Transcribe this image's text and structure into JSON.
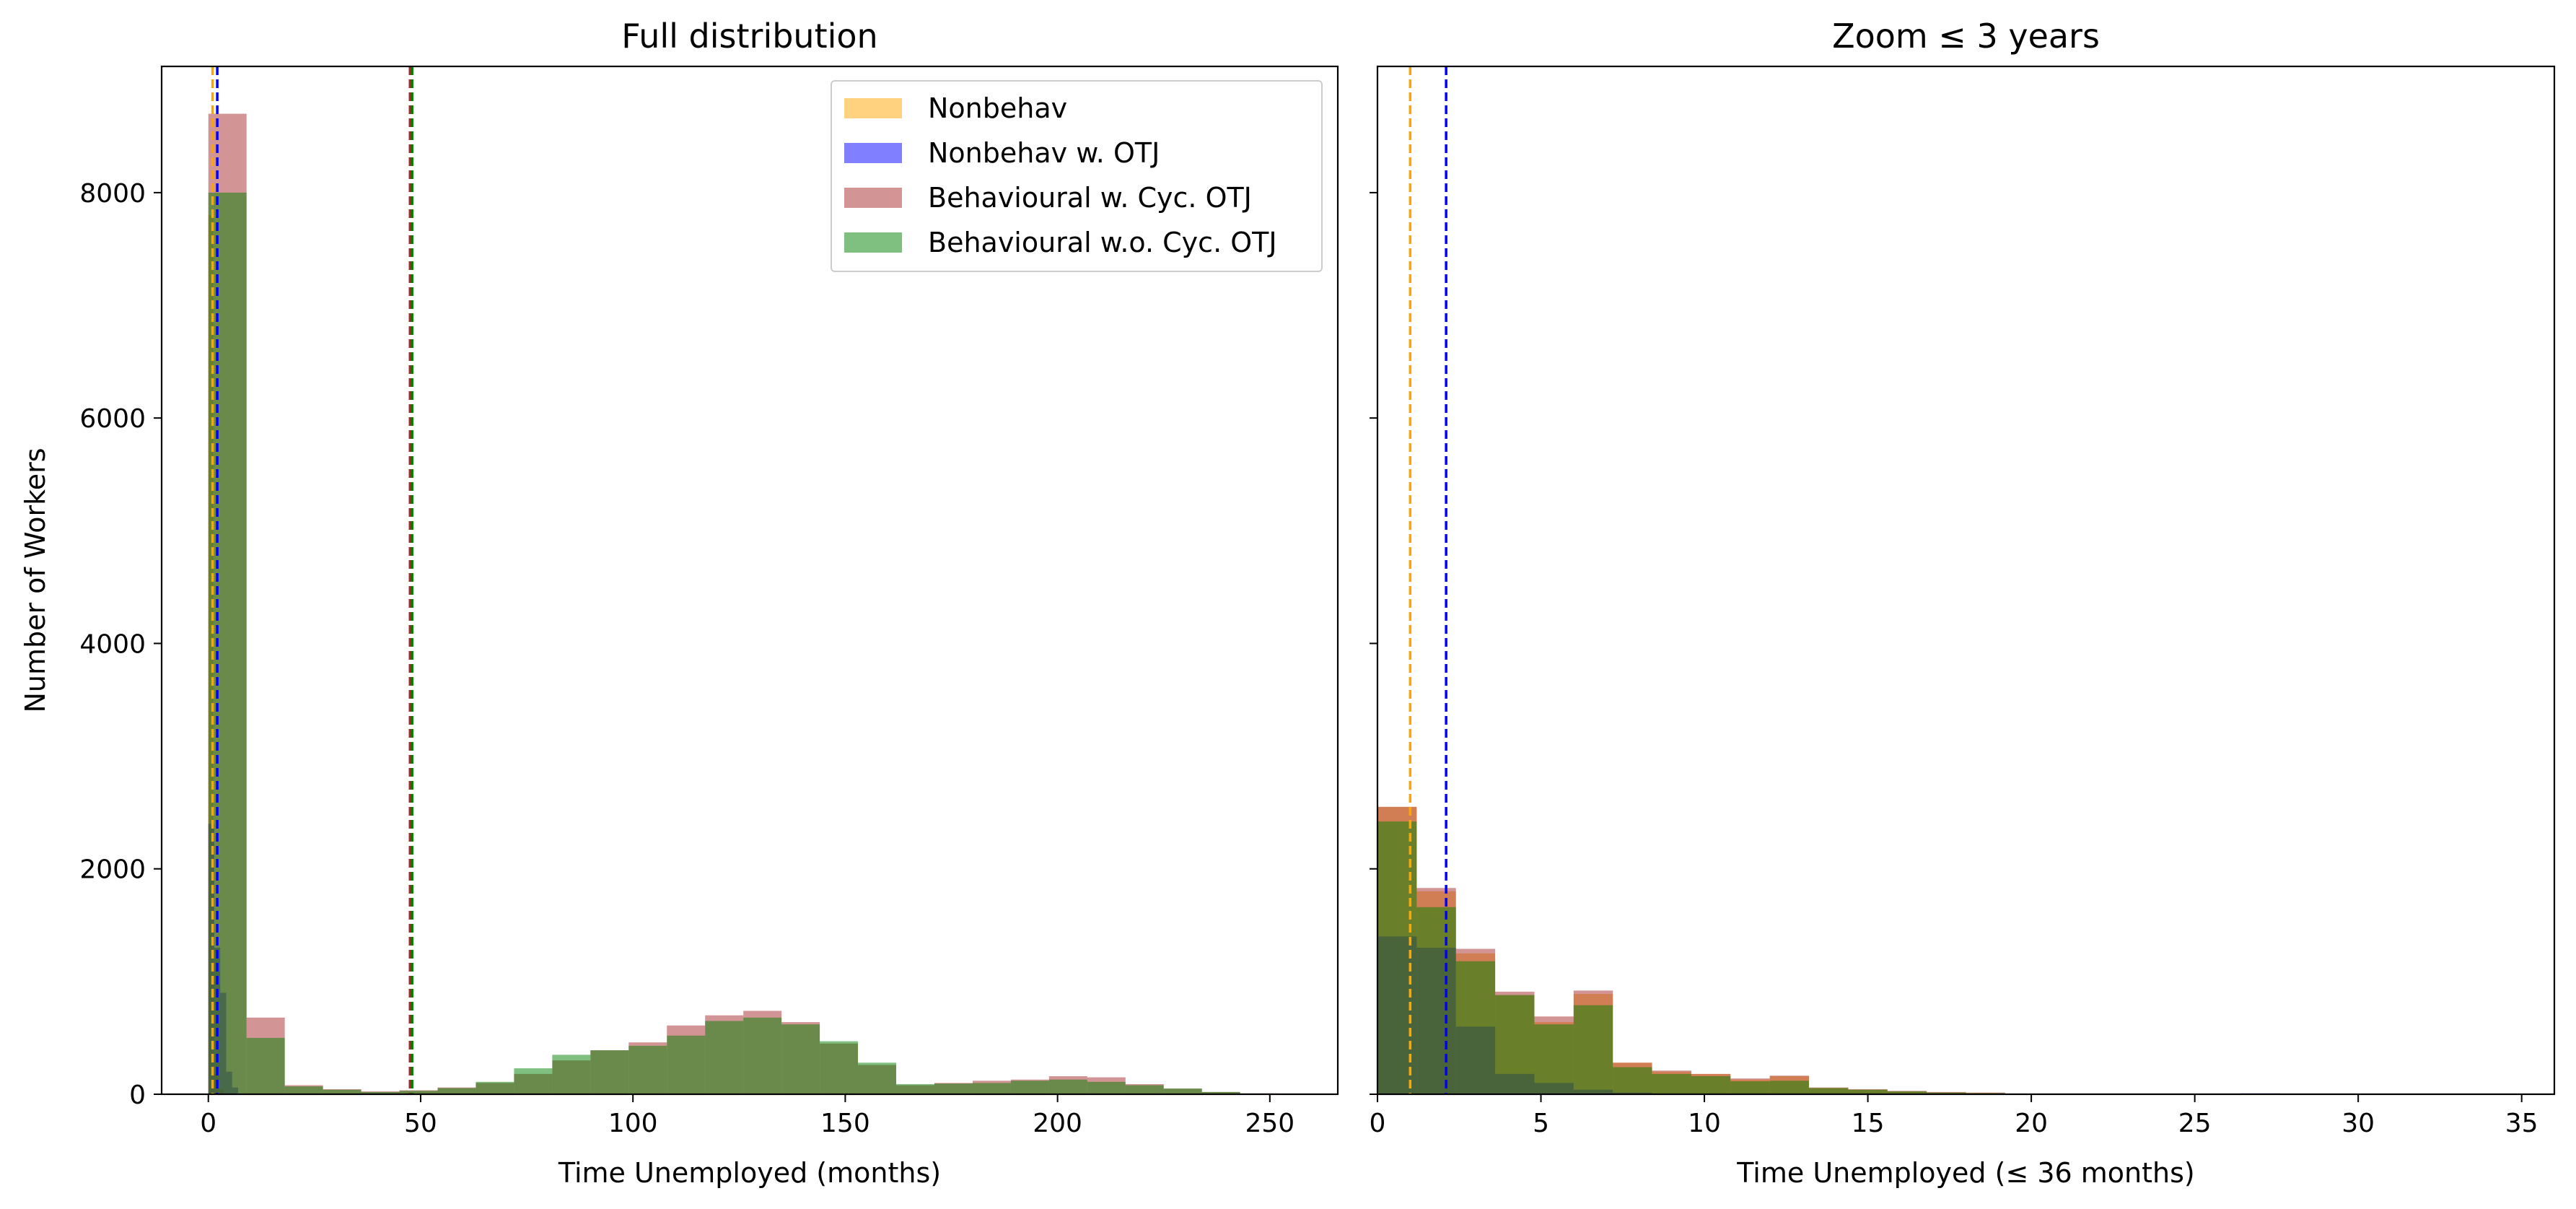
{
  "chart_data": [
    {
      "type": "histogram",
      "title": "Full distribution",
      "xlabel": "Time Unemployed (months)",
      "ylabel": "Number of Workers",
      "xlim": [
        -11,
        266
      ],
      "ylim": [
        0,
        9120
      ],
      "xticks": [
        0,
        50,
        100,
        150,
        200,
        250
      ],
      "yticks": [
        0,
        2000,
        4000,
        6000,
        8000
      ],
      "grid": false,
      "legend_position": "top-right",
      "legend": [
        "Nonbehav",
        "Nonbehav w. OTJ",
        "Behavioural w. Cyc. OTJ",
        "Behavioural w.o. Cyc. OTJ"
      ],
      "bin_width": 9,
      "bin_start": 0,
      "series": [
        {
          "name": "Nonbehav",
          "color": "#ffa500",
          "opacity": 0.5,
          "bins": [
            {
              "x0": 0,
              "x1": 1.2,
              "value": 7800
            },
            {
              "x0": 1.2,
              "x1": 2.4,
              "value": 180
            },
            {
              "x0": 2.4,
              "x1": 3.6,
              "value": 40
            }
          ]
        },
        {
          "name": "Nonbehav w. OTJ",
          "color": "#0000ff",
          "opacity": 0.5,
          "bins": [
            {
              "x0": 0,
              "x1": 1.4,
              "value": 2400
            },
            {
              "x0": 1.4,
              "x1": 2.8,
              "value": 1300
            },
            {
              "x0": 2.8,
              "x1": 4.2,
              "value": 900
            },
            {
              "x0": 4.2,
              "x1": 5.6,
              "value": 200
            },
            {
              "x0": 5.6,
              "x1": 7,
              "value": 60
            }
          ]
        },
        {
          "name": "Behavioural w. Cyc. OTJ",
          "color": "#a52a2a",
          "opacity": 0.5,
          "bins": [
            {
              "x0": 0,
              "x1": 9,
              "value": 8700
            },
            {
              "x0": 9,
              "x1": 18,
              "value": 680
            },
            {
              "x0": 18,
              "x1": 27,
              "value": 80
            },
            {
              "x0": 27,
              "x1": 36,
              "value": 45
            },
            {
              "x0": 36,
              "x1": 45,
              "value": 25
            },
            {
              "x0": 45,
              "x1": 54,
              "value": 35
            },
            {
              "x0": 54,
              "x1": 63,
              "value": 60
            },
            {
              "x0": 63,
              "x1": 72,
              "value": 100
            },
            {
              "x0": 72,
              "x1": 81,
              "value": 180
            },
            {
              "x0": 81,
              "x1": 90,
              "value": 300
            },
            {
              "x0": 90,
              "x1": 99,
              "value": 390
            },
            {
              "x0": 99,
              "x1": 108,
              "value": 460
            },
            {
              "x0": 108,
              "x1": 117,
              "value": 610
            },
            {
              "x0": 117,
              "x1": 126,
              "value": 700
            },
            {
              "x0": 126,
              "x1": 135,
              "value": 740
            },
            {
              "x0": 135,
              "x1": 144,
              "value": 640
            },
            {
              "x0": 144,
              "x1": 153,
              "value": 450
            },
            {
              "x0": 153,
              "x1": 162,
              "value": 260
            },
            {
              "x0": 162,
              "x1": 171,
              "value": 80
            },
            {
              "x0": 171,
              "x1": 180,
              "value": 100
            },
            {
              "x0": 180,
              "x1": 189,
              "value": 120
            },
            {
              "x0": 189,
              "x1": 198,
              "value": 130
            },
            {
              "x0": 198,
              "x1": 207,
              "value": 160
            },
            {
              "x0": 207,
              "x1": 216,
              "value": 150
            },
            {
              "x0": 216,
              "x1": 225,
              "value": 90
            },
            {
              "x0": 225,
              "x1": 234,
              "value": 50
            },
            {
              "x0": 234,
              "x1": 243,
              "value": 20
            },
            {
              "x0": 243,
              "x1": 252,
              "value": 8
            }
          ]
        },
        {
          "name": "Behavioural w.o. Cyc. OTJ",
          "color": "#008000",
          "opacity": 0.5,
          "bins": [
            {
              "x0": 0,
              "x1": 9,
              "value": 8000
            },
            {
              "x0": 9,
              "x1": 18,
              "value": 500
            },
            {
              "x0": 18,
              "x1": 27,
              "value": 70
            },
            {
              "x0": 27,
              "x1": 36,
              "value": 40
            },
            {
              "x0": 36,
              "x1": 45,
              "value": 20
            },
            {
              "x0": 45,
              "x1": 54,
              "value": 30
            },
            {
              "x0": 54,
              "x1": 63,
              "value": 55
            },
            {
              "x0": 63,
              "x1": 72,
              "value": 110
            },
            {
              "x0": 72,
              "x1": 81,
              "value": 230
            },
            {
              "x0": 81,
              "x1": 90,
              "value": 350
            },
            {
              "x0": 90,
              "x1": 99,
              "value": 390
            },
            {
              "x0": 99,
              "x1": 108,
              "value": 430
            },
            {
              "x0": 108,
              "x1": 117,
              "value": 520
            },
            {
              "x0": 117,
              "x1": 126,
              "value": 650
            },
            {
              "x0": 126,
              "x1": 135,
              "value": 680
            },
            {
              "x0": 135,
              "x1": 144,
              "value": 620
            },
            {
              "x0": 144,
              "x1": 153,
              "value": 470
            },
            {
              "x0": 153,
              "x1": 162,
              "value": 280
            },
            {
              "x0": 162,
              "x1": 171,
              "value": 90
            },
            {
              "x0": 171,
              "x1": 180,
              "value": 95
            },
            {
              "x0": 180,
              "x1": 189,
              "value": 100
            },
            {
              "x0": 189,
              "x1": 198,
              "value": 120
            },
            {
              "x0": 198,
              "x1": 207,
              "value": 130
            },
            {
              "x0": 207,
              "x1": 216,
              "value": 110
            },
            {
              "x0": 216,
              "x1": 225,
              "value": 80
            },
            {
              "x0": 225,
              "x1": 234,
              "value": 50
            },
            {
              "x0": 234,
              "x1": 243,
              "value": 20
            },
            {
              "x0": 243,
              "x1": 252,
              "value": 6
            }
          ]
        }
      ],
      "vlines": [
        {
          "x": 1.0,
          "color": "#ffa500",
          "style": "dashed"
        },
        {
          "x": 2.1,
          "color": "#0000ff",
          "style": "dashed"
        },
        {
          "x": 47.5,
          "color": "#a52a2a",
          "style": "dashed"
        },
        {
          "x": 48.0,
          "color": "#008000",
          "style": "dashed"
        }
      ]
    },
    {
      "type": "histogram",
      "title": "Zoom ≤ 3 years",
      "xlabel": "Time Unemployed (≤ 36 months)",
      "ylabel": "",
      "xlim": [
        0,
        36
      ],
      "ylim": [
        0,
        9120
      ],
      "xticks": [
        0,
        5,
        10,
        15,
        20,
        25,
        30,
        35
      ],
      "yticks": [
        0,
        2000,
        4000,
        6000,
        8000
      ],
      "shared_y": true,
      "grid": false,
      "bin_width": 1.2,
      "bin_start": 0,
      "series": [
        {
          "name": "Nonbehav",
          "color": "#ffa500",
          "opacity": 0.5,
          "bins": [
            {
              "x0": 0,
              "x1": 1.2,
              "value": 2550
            },
            {
              "x0": 1.2,
              "x1": 2.4,
              "value": 1800
            },
            {
              "x0": 2.4,
              "x1": 3.6,
              "value": 1250
            },
            {
              "x0": 3.6,
              "x1": 4.8,
              "value": 880
            },
            {
              "x0": 4.8,
              "x1": 6,
              "value": 640
            },
            {
              "x0": 6,
              "x1": 7.2,
              "value": 890
            },
            {
              "x0": 7.2,
              "x1": 8.4,
              "value": 280
            },
            {
              "x0": 8.4,
              "x1": 9.6,
              "value": 200
            },
            {
              "x0": 9.6,
              "x1": 10.8,
              "value": 180
            },
            {
              "x0": 10.8,
              "x1": 12,
              "value": 130
            },
            {
              "x0": 12,
              "x1": 13.2,
              "value": 160
            },
            {
              "x0": 13.2,
              "x1": 14.4,
              "value": 55
            },
            {
              "x0": 14.4,
              "x1": 15.6,
              "value": 40
            },
            {
              "x0": 15.6,
              "x1": 16.8,
              "value": 25
            },
            {
              "x0": 16.8,
              "x1": 18,
              "value": 15
            },
            {
              "x0": 18,
              "x1": 19.2,
              "value": 10
            }
          ]
        },
        {
          "name": "Nonbehav w. OTJ",
          "color": "#0000ff",
          "opacity": 0.5,
          "bins": [
            {
              "x0": 0,
              "x1": 1.2,
              "value": 1400
            },
            {
              "x0": 1.2,
              "x1": 2.4,
              "value": 1300
            },
            {
              "x0": 2.4,
              "x1": 3.6,
              "value": 600
            },
            {
              "x0": 3.6,
              "x1": 4.8,
              "value": 180
            },
            {
              "x0": 4.8,
              "x1": 6,
              "value": 100
            },
            {
              "x0": 6,
              "x1": 7.2,
              "value": 40
            },
            {
              "x0": 7.2,
              "x1": 8.4,
              "value": 15
            },
            {
              "x0": 26.4,
              "x1": 27.6,
              "value": 8
            }
          ]
        },
        {
          "name": "Behavioural w. Cyc. OTJ",
          "color": "#a52a2a",
          "opacity": 0.5,
          "bins": [
            {
              "x0": 0,
              "x1": 1.2,
              "value": 2550
            },
            {
              "x0": 1.2,
              "x1": 2.4,
              "value": 1830
            },
            {
              "x0": 2.4,
              "x1": 3.6,
              "value": 1290
            },
            {
              "x0": 3.6,
              "x1": 4.8,
              "value": 910
            },
            {
              "x0": 4.8,
              "x1": 6,
              "value": 690
            },
            {
              "x0": 6,
              "x1": 7.2,
              "value": 920
            },
            {
              "x0": 7.2,
              "x1": 8.4,
              "value": 280
            },
            {
              "x0": 8.4,
              "x1": 9.6,
              "value": 210
            },
            {
              "x0": 9.6,
              "x1": 10.8,
              "value": 180
            },
            {
              "x0": 10.8,
              "x1": 12,
              "value": 140
            },
            {
              "x0": 12,
              "x1": 13.2,
              "value": 165
            },
            {
              "x0": 13.2,
              "x1": 14.4,
              "value": 60
            },
            {
              "x0": 14.4,
              "x1": 15.6,
              "value": 45
            },
            {
              "x0": 15.6,
              "x1": 16.8,
              "value": 30
            },
            {
              "x0": 16.8,
              "x1": 18,
              "value": 20
            },
            {
              "x0": 18,
              "x1": 19.2,
              "value": 15
            }
          ]
        },
        {
          "name": "Behavioural w.o. Cyc. OTJ",
          "color": "#008000",
          "opacity": 0.5,
          "bins": [
            {
              "x0": 0,
              "x1": 1.2,
              "value": 2420
            },
            {
              "x0": 1.2,
              "x1": 2.4,
              "value": 1660
            },
            {
              "x0": 2.4,
              "x1": 3.6,
              "value": 1180
            },
            {
              "x0": 3.6,
              "x1": 4.8,
              "value": 880
            },
            {
              "x0": 4.8,
              "x1": 6,
              "value": 620
            },
            {
              "x0": 6,
              "x1": 7.2,
              "value": 790
            },
            {
              "x0": 7.2,
              "x1": 8.4,
              "value": 240
            },
            {
              "x0": 8.4,
              "x1": 9.6,
              "value": 180
            },
            {
              "x0": 9.6,
              "x1": 10.8,
              "value": 160
            },
            {
              "x0": 10.8,
              "x1": 12,
              "value": 115
            },
            {
              "x0": 12,
              "x1": 13.2,
              "value": 120
            },
            {
              "x0": 13.2,
              "x1": 14.4,
              "value": 55
            },
            {
              "x0": 14.4,
              "x1": 15.6,
              "value": 40
            },
            {
              "x0": 15.6,
              "x1": 16.8,
              "value": 25
            },
            {
              "x0": 16.8,
              "x1": 18,
              "value": 15
            },
            {
              "x0": 18,
              "x1": 19.2,
              "value": 10
            }
          ]
        }
      ],
      "vlines": [
        {
          "x": 1.0,
          "color": "#ffa500",
          "style": "dashed"
        },
        {
          "x": 2.1,
          "color": "#0000ff",
          "style": "dashed"
        }
      ]
    }
  ]
}
